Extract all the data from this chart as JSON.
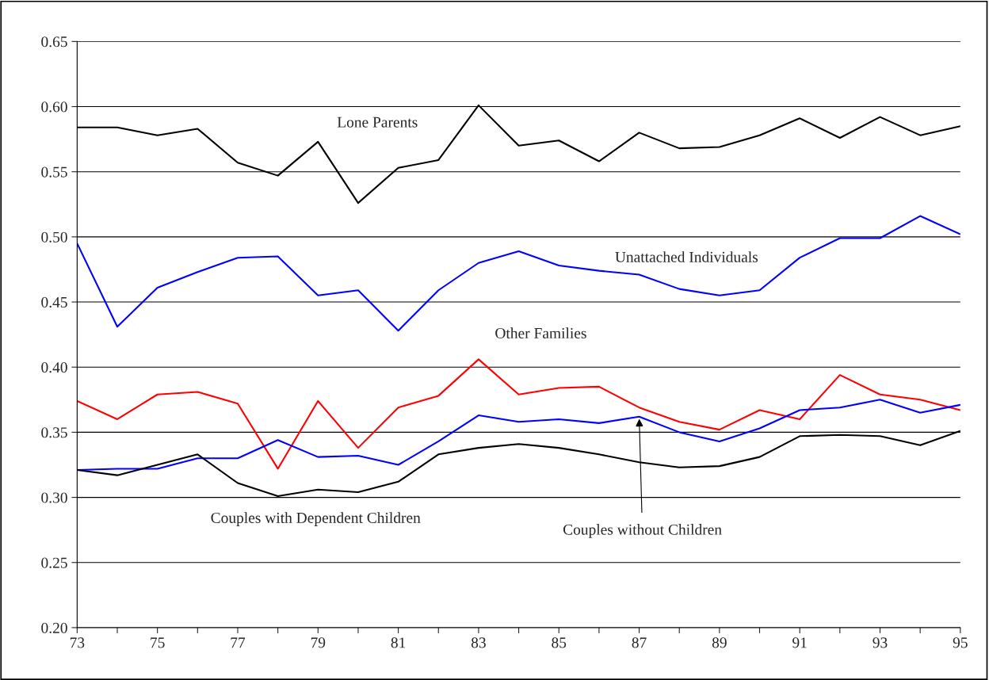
{
  "chart_data": {
    "type": "line",
    "x": [
      73,
      74,
      75,
      76,
      77,
      78,
      79,
      80,
      81,
      82,
      83,
      84,
      85,
      86,
      87,
      88,
      89,
      90,
      91,
      92,
      93,
      94,
      95
    ],
    "xlim": [
      73,
      95
    ],
    "xticks": [
      73,
      {
        "value": 74,
        "label": null
      },
      75,
      {
        "value": 76,
        "label": null
      },
      77,
      {
        "value": 78,
        "label": null
      },
      79,
      {
        "value": 80,
        "label": null
      },
      81,
      {
        "value": 82,
        "label": null
      },
      83,
      {
        "value": 84,
        "label": null
      },
      85,
      {
        "value": 86,
        "label": null
      },
      87,
      {
        "value": 88,
        "label": null
      },
      89,
      {
        "value": 90,
        "label": null
      },
      91,
      {
        "value": 92,
        "label": null
      },
      93,
      {
        "value": 94,
        "label": null
      },
      95
    ],
    "ylim": [
      0.2,
      0.65
    ],
    "yticks": [
      {
        "value": 0.2,
        "label": "0.20"
      },
      {
        "value": 0.25,
        "label": "0.25"
      },
      {
        "value": 0.3,
        "label": "0.30"
      },
      {
        "value": 0.35,
        "label": "0.35"
      },
      {
        "value": 0.4,
        "label": "0.40"
      },
      {
        "value": 0.45,
        "label": "0.45"
      },
      {
        "value": 0.5,
        "label": "0.50"
      },
      {
        "value": 0.55,
        "label": "0.55"
      },
      {
        "value": 0.6,
        "label": "0.60"
      },
      {
        "value": 0.65,
        "label": "0.65"
      }
    ],
    "grid": "y",
    "legend": false,
    "marker": "none",
    "line_style": "solid",
    "series": [
      {
        "name": "Lone Parents",
        "color": "#000000",
        "values": [
          0.584,
          0.584,
          0.578,
          0.583,
          0.557,
          0.547,
          0.573,
          0.526,
          0.553,
          0.559,
          0.601,
          0.57,
          0.574,
          0.558,
          0.58,
          0.568,
          0.569,
          0.578,
          0.591,
          0.576,
          0.592,
          0.578,
          0.585
        ]
      },
      {
        "name": "Unattached Individuals",
        "color": "#0000ff",
        "values": [
          0.495,
          0.431,
          0.461,
          0.473,
          0.484,
          0.485,
          0.455,
          0.459,
          0.428,
          0.459,
          0.48,
          0.489,
          0.478,
          0.474,
          0.471,
          0.46,
          0.455,
          0.459,
          0.484,
          0.499,
          0.499,
          0.516,
          0.502
        ]
      },
      {
        "name": "Other Families",
        "color": "#ff0000",
        "values": [
          0.374,
          0.36,
          0.379,
          0.381,
          0.372,
          0.322,
          0.374,
          0.338,
          0.369,
          0.378,
          0.406,
          0.379,
          0.384,
          0.385,
          0.369,
          0.358,
          0.352,
          0.367,
          0.36,
          0.394,
          0.379,
          0.375,
          0.367
        ]
      },
      {
        "name": "Couples without Children",
        "color": "#0000ff",
        "values": [
          0.321,
          0.322,
          0.322,
          0.33,
          0.33,
          0.344,
          0.331,
          0.332,
          0.325,
          0.343,
          0.363,
          0.358,
          0.36,
          0.357,
          0.362,
          0.35,
          0.343,
          0.353,
          0.367,
          0.369,
          0.375,
          0.365,
          0.371
        ]
      },
      {
        "name": "Couples with Dependent Children",
        "color": "#000000",
        "values": [
          0.321,
          0.317,
          0.325,
          0.333,
          0.311,
          0.301,
          0.306,
          0.304,
          0.312,
          0.333,
          0.338,
          0.341,
          0.338,
          0.333,
          0.327,
          0.323,
          0.324,
          0.331,
          0.347,
          0.348,
          0.347,
          0.34,
          0.351
        ]
      }
    ]
  }
}
